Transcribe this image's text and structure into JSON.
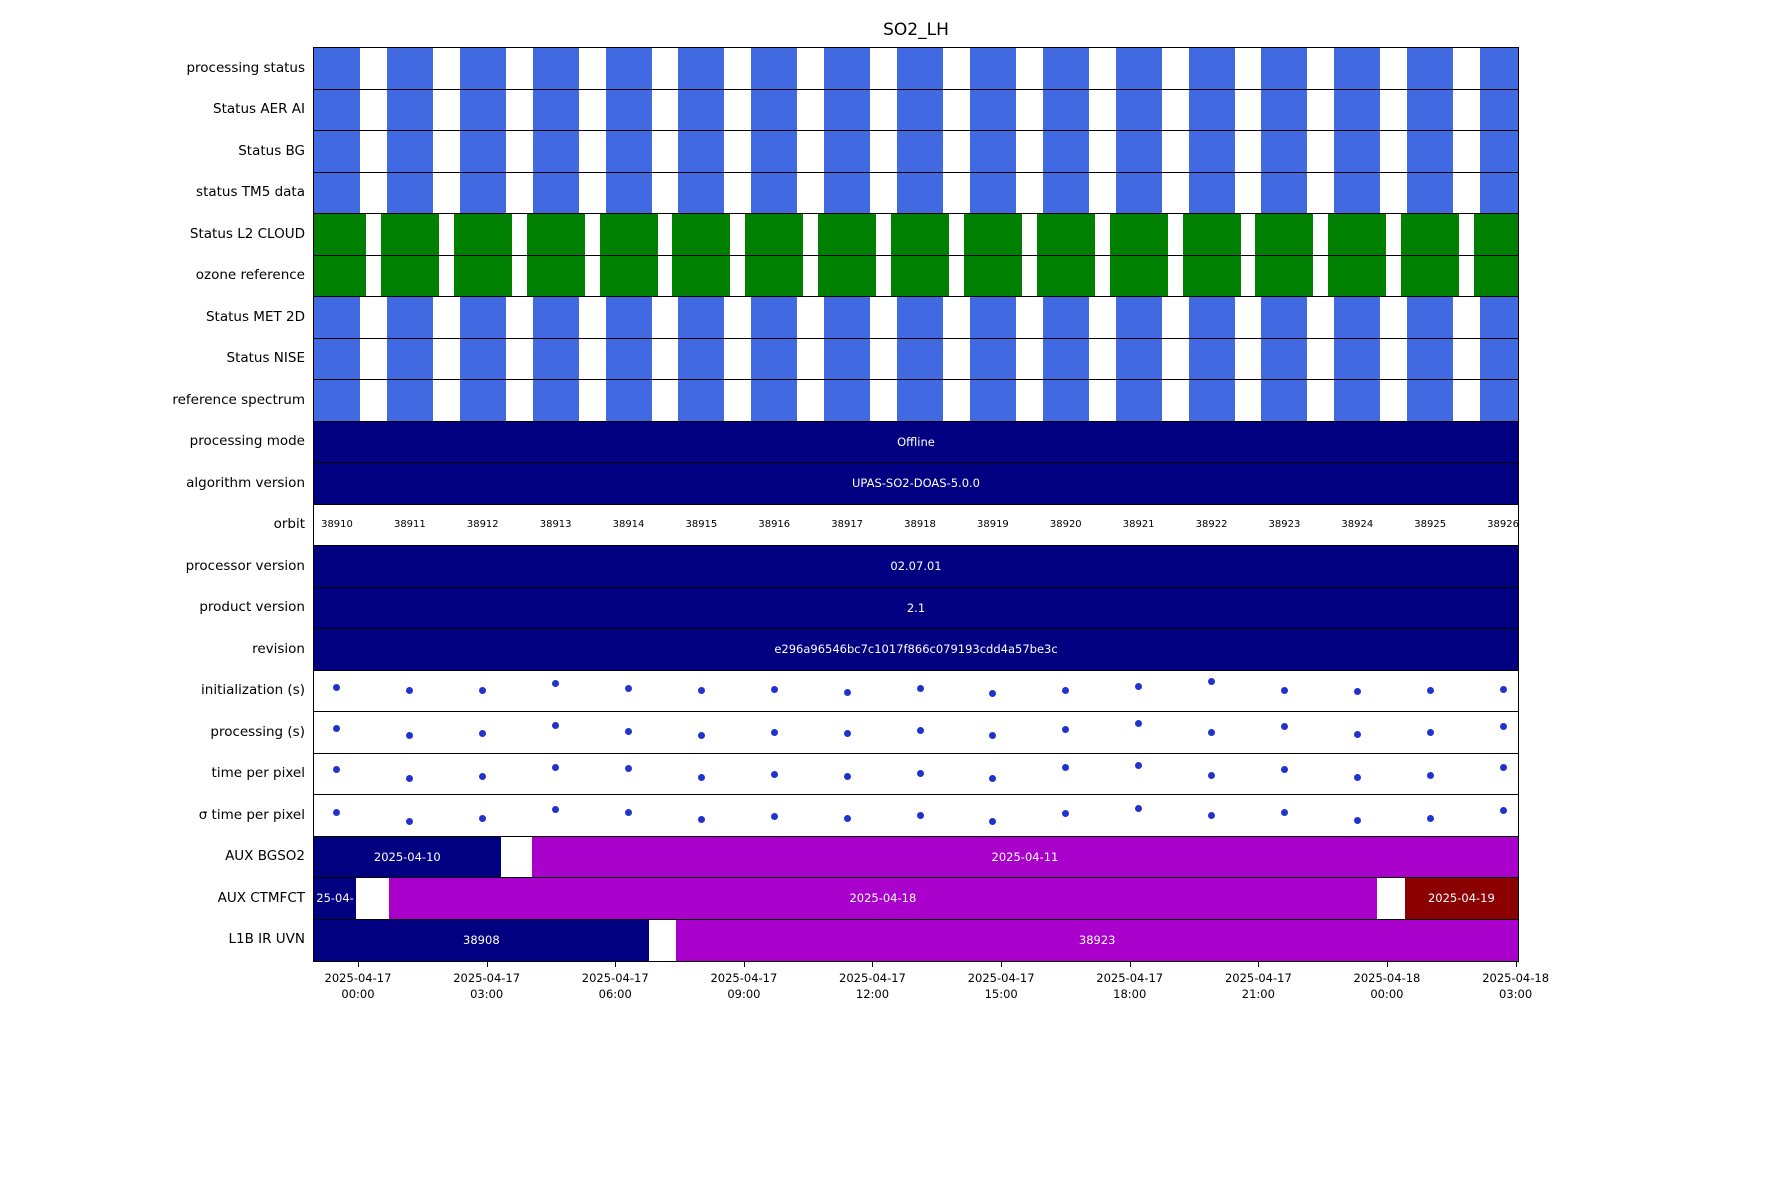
{
  "title": "SO2_LH",
  "colors": {
    "blue": "#4169E1",
    "green": "#008000",
    "navy": "#000080",
    "magenta": "#AA00CC",
    "darkred": "#8B0000",
    "dot": "#2233CC"
  },
  "chart_data": {
    "type": "table",
    "title": "SO2_LH",
    "orbits": [
      "38910",
      "38911",
      "38912",
      "38913",
      "38914",
      "38915",
      "38916",
      "38917",
      "38918",
      "38919",
      "38920",
      "38921",
      "38922",
      "38923",
      "38924",
      "38925",
      "38926"
    ],
    "x_ticks": [
      {
        "date": "2025-04-17",
        "time": "00:00",
        "frac": 0.0373
      },
      {
        "date": "2025-04-17",
        "time": "03:00",
        "frac": 0.144
      },
      {
        "date": "2025-04-17",
        "time": "06:00",
        "frac": 0.2506
      },
      {
        "date": "2025-04-17",
        "time": "09:00",
        "frac": 0.3573
      },
      {
        "date": "2025-04-17",
        "time": "12:00",
        "frac": 0.4639
      },
      {
        "date": "2025-04-17",
        "time": "15:00",
        "frac": 0.5706
      },
      {
        "date": "2025-04-17",
        "time": "18:00",
        "frac": 0.6772
      },
      {
        "date": "2025-04-17",
        "time": "21:00",
        "frac": 0.7839
      },
      {
        "date": "2025-04-18",
        "time": "00:00",
        "frac": 0.8905
      },
      {
        "date": "2025-04-18",
        "time": "03:00",
        "frac": 0.9972
      }
    ],
    "rows": [
      {
        "label": "processing status",
        "kind": "blocks",
        "color": "blue"
      },
      {
        "label": "Status AER AI",
        "kind": "blocks",
        "color": "blue"
      },
      {
        "label": "Status BG",
        "kind": "blocks",
        "color": "blue"
      },
      {
        "label": "status TM5 data",
        "kind": "blocks",
        "color": "blue"
      },
      {
        "label": "Status L2  CLOUD",
        "kind": "blocks",
        "color": "green",
        "wide": true
      },
      {
        "label": "ozone reference",
        "kind": "blocks",
        "color": "green",
        "wide": true
      },
      {
        "label": "Status MET 2D",
        "kind": "blocks",
        "color": "blue"
      },
      {
        "label": "Status NISE",
        "kind": "blocks",
        "color": "blue"
      },
      {
        "label": "reference spectrum",
        "kind": "blocks",
        "color": "blue"
      },
      {
        "label": "processing mode",
        "kind": "band",
        "color": "navy",
        "text": "Offline"
      },
      {
        "label": "algorithm version",
        "kind": "band",
        "color": "navy",
        "text": "UPAS-SO2-DOAS-5.0.0"
      },
      {
        "label": "orbit",
        "kind": "orbits"
      },
      {
        "label": "processor version",
        "kind": "band",
        "color": "navy",
        "text": "02.07.01"
      },
      {
        "label": "product version",
        "kind": "band",
        "color": "navy",
        "text": "2.1"
      },
      {
        "label": "revision",
        "kind": "band",
        "color": "navy",
        "text": "e296a96546bc7c1017f866c079193cdd4a57be3c"
      },
      {
        "label": "initialization (s)",
        "kind": "scatter",
        "values": [
          0.4,
          0.5,
          0.48,
          0.25,
          0.42,
          0.48,
          0.45,
          0.55,
          0.42,
          0.58,
          0.5,
          0.35,
          0.2,
          0.5,
          0.52,
          0.5,
          0.45
        ]
      },
      {
        "label": "processing (s)",
        "kind": "scatter",
        "values": [
          0.38,
          0.6,
          0.55,
          0.28,
          0.48,
          0.62,
          0.5,
          0.55,
          0.45,
          0.6,
          0.42,
          0.22,
          0.5,
          0.3,
          0.58,
          0.52,
          0.32
        ]
      },
      {
        "label": "time per pixel",
        "kind": "scatter",
        "values": [
          0.35,
          0.65,
          0.6,
          0.28,
          0.32,
          0.62,
          0.52,
          0.6,
          0.5,
          0.65,
          0.3,
          0.22,
          0.55,
          0.35,
          0.62,
          0.55,
          0.3
        ]
      },
      {
        "label": "σ time per pixel",
        "kind": "scatter",
        "values": [
          0.42,
          0.7,
          0.6,
          0.3,
          0.4,
          0.66,
          0.55,
          0.62,
          0.52,
          0.7,
          0.45,
          0.28,
          0.52,
          0.4,
          0.68,
          0.6,
          0.35
        ]
      },
      {
        "label": "AUX BGSO2",
        "kind": "segments",
        "segments": [
          {
            "start": 0.0,
            "end": 0.155,
            "color": "navy",
            "text": "2025-04-10"
          },
          {
            "start": 0.181,
            "end": 1.0,
            "color": "magenta",
            "text": "2025-04-11"
          }
        ]
      },
      {
        "label": "AUX CTMFCT",
        "kind": "segments",
        "segments": [
          {
            "start": 0.0,
            "end": 0.035,
            "color": "navy",
            "text": "25-04-"
          },
          {
            "start": 0.062,
            "end": 0.883,
            "color": "magenta",
            "text": "2025-04-18"
          },
          {
            "start": 0.906,
            "end": 1.0,
            "color": "darkred",
            "text": "2025-04-19"
          }
        ]
      },
      {
        "label": "L1B IR UVN",
        "kind": "segments",
        "segments": [
          {
            "start": 0.0,
            "end": 0.278,
            "color": "navy",
            "text": "38908"
          },
          {
            "start": 0.301,
            "end": 1.0,
            "color": "magenta",
            "text": "38923"
          }
        ]
      }
    ],
    "layout_hints": {
      "orbit_start_frac": 0.0191,
      "orbit_step_frac": 0.06053,
      "legend": "none",
      "grid": "row-borders-only"
    }
  }
}
